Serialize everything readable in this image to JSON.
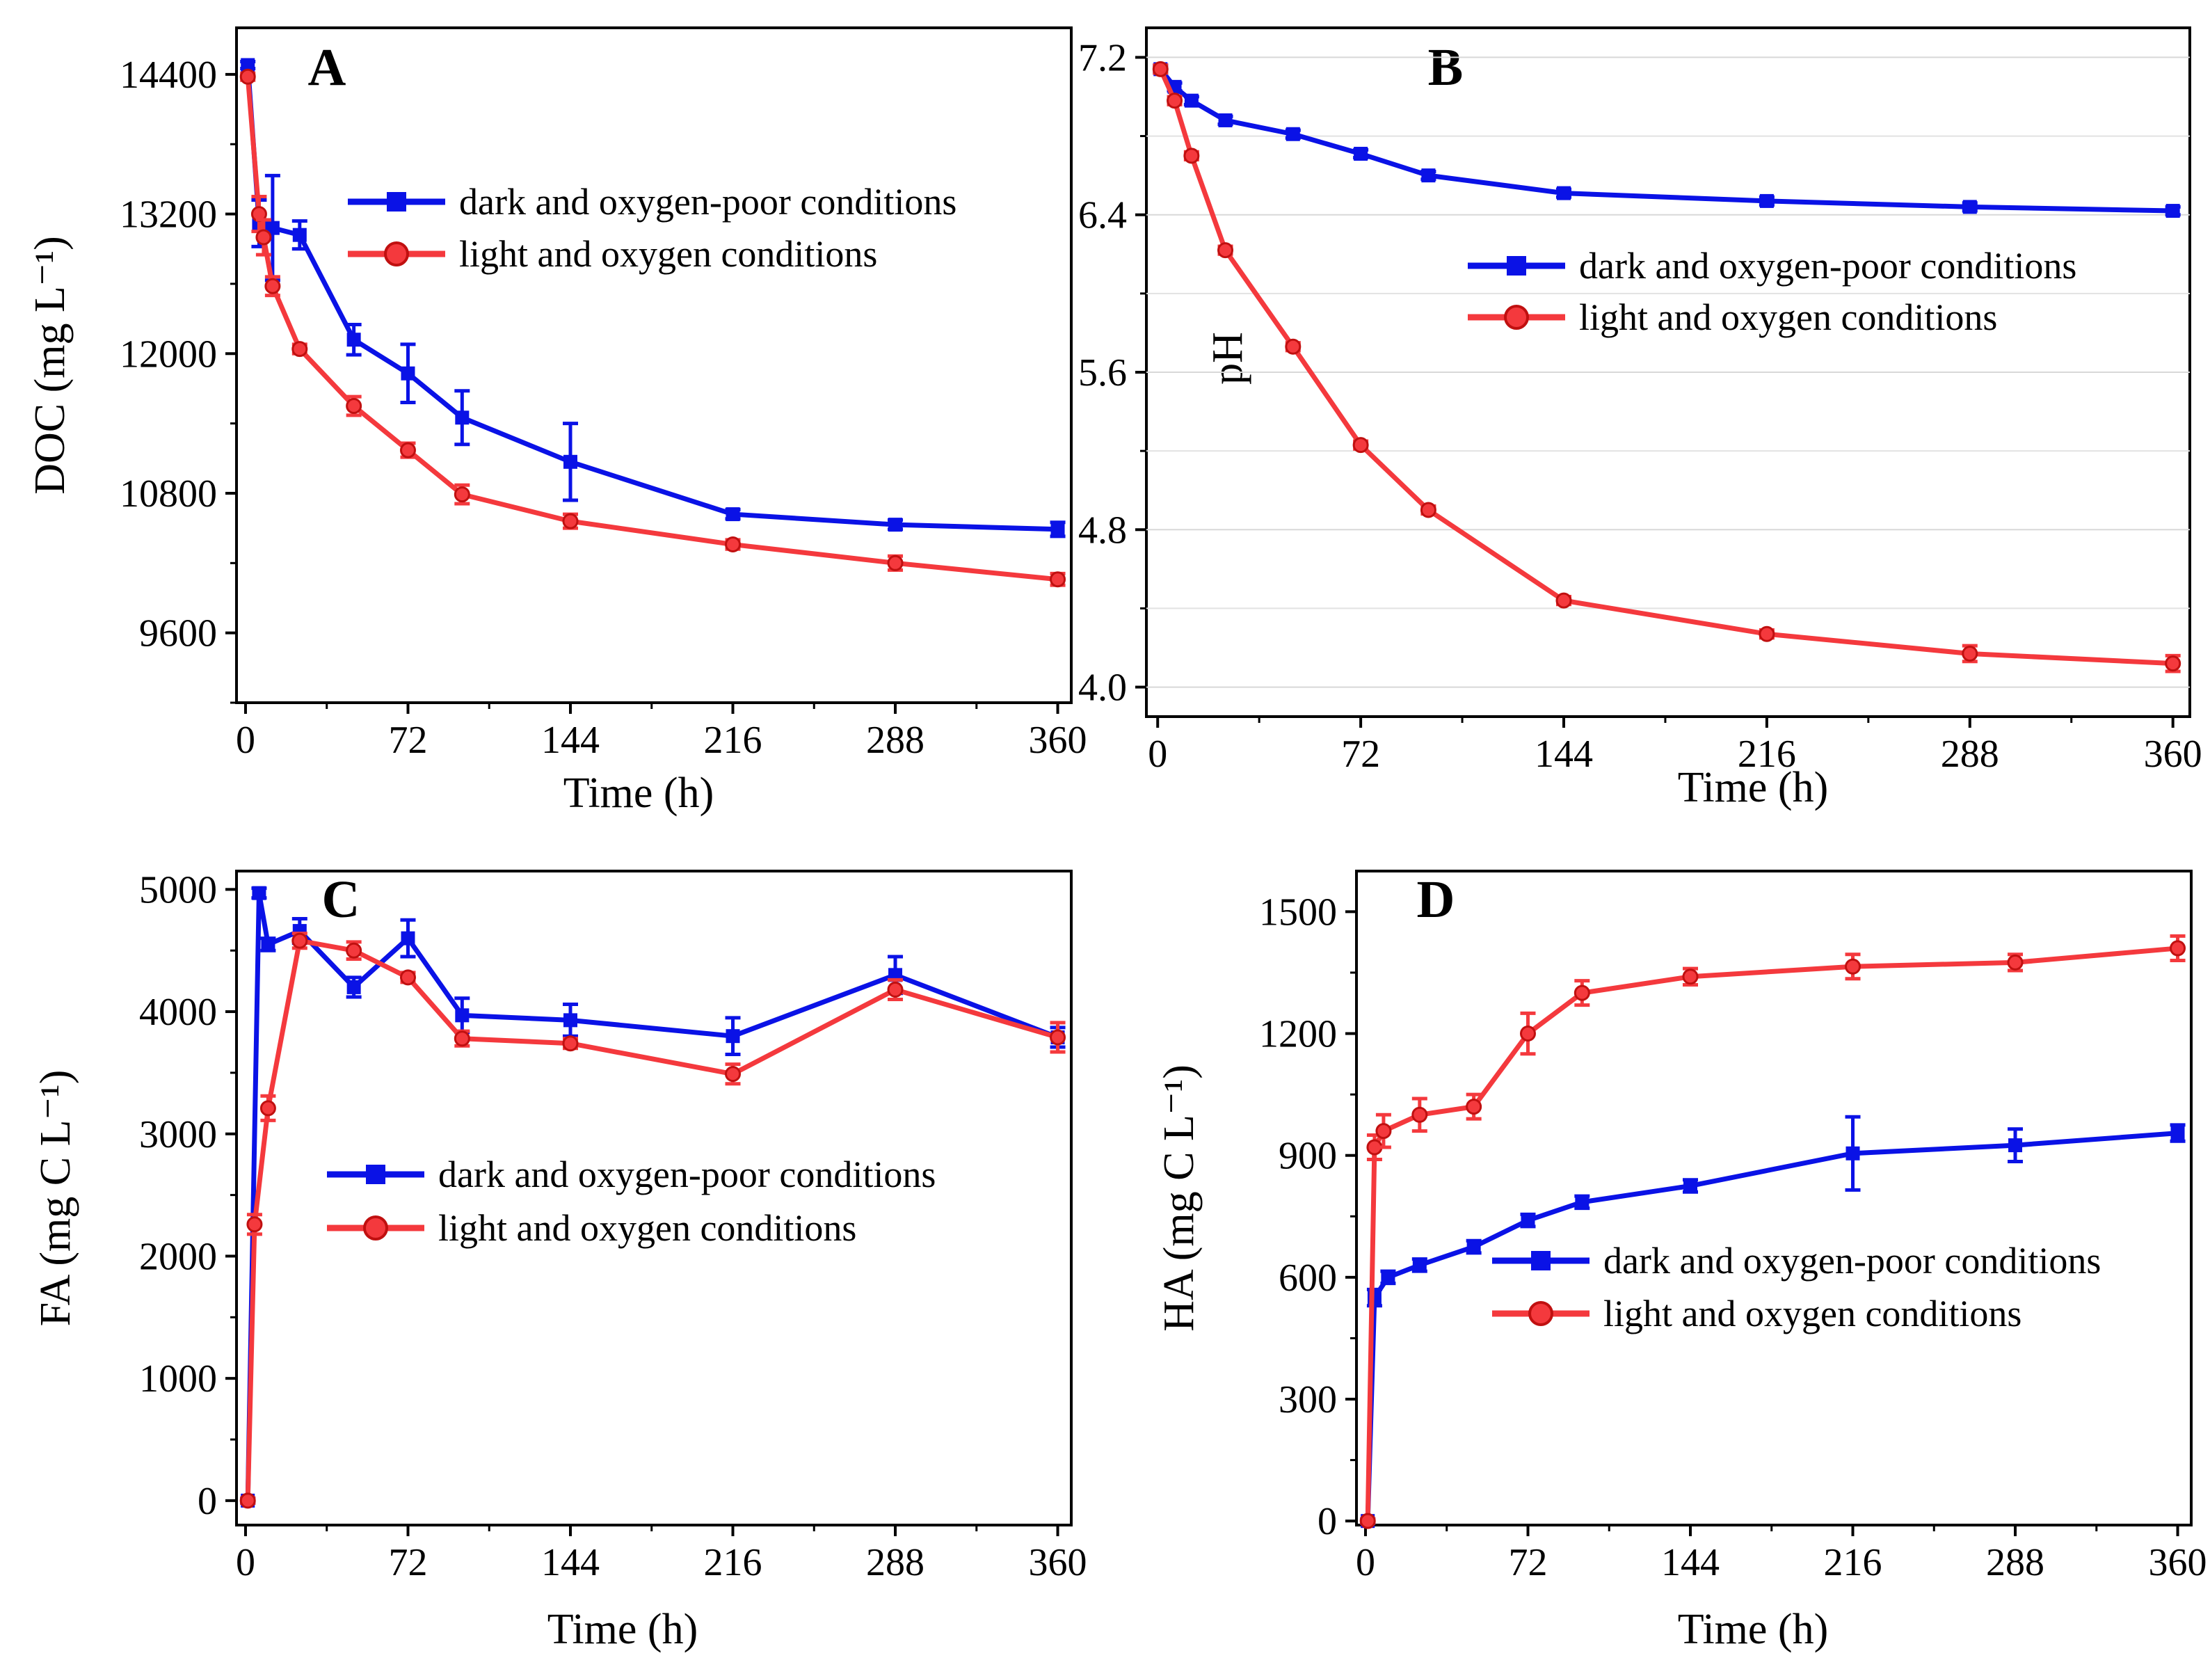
{
  "legend": {
    "dark_label": "dark and oxygen-poor conditions",
    "light_label": "light and oxygen conditions"
  },
  "colors": {
    "dark": "#0a12e6",
    "light": "#f4393d"
  },
  "chart_data": [
    {
      "panel": "A",
      "type": "line",
      "xlabel": "Time (h)",
      "ylabel": "DOC (mg L⁻¹)",
      "xlim": [
        -4,
        366
      ],
      "ylim": [
        9000,
        14800
      ],
      "xticks": [
        0,
        72,
        144,
        216,
        288,
        360
      ],
      "yticks": [
        9600,
        10800,
        12000,
        13200,
        14400
      ],
      "ytick_labels": [
        "9600",
        "10800",
        "12000",
        "13200",
        "14400"
      ],
      "legend_position": "top-right",
      "series": [
        {
          "name": "dark and oxygen-poor conditions",
          "marker": "square",
          "x": [
            1,
            6,
            12,
            24,
            48,
            72,
            96,
            144,
            216,
            288,
            360
          ],
          "y": [
            14480,
            13120,
            13080,
            13020,
            12120,
            11830,
            11450,
            11070,
            10620,
            10530,
            10490
          ],
          "err": [
            30,
            200,
            450,
            120,
            130,
            250,
            230,
            330,
            40,
            40,
            60
          ]
        },
        {
          "name": "light and oxygen conditions",
          "marker": "circle",
          "x": [
            1,
            6,
            8,
            12,
            24,
            48,
            72,
            96,
            144,
            216,
            288,
            360
          ],
          "y": [
            14380,
            13200,
            13000,
            12580,
            12040,
            11550,
            11170,
            10790,
            10560,
            10360,
            10200,
            10060
          ],
          "err": [
            30,
            150,
            150,
            80,
            40,
            80,
            60,
            80,
            60,
            40,
            60,
            50
          ]
        }
      ]
    },
    {
      "panel": "B",
      "type": "line",
      "xlabel": "Time (h)",
      "ylabel": "pH",
      "xlim": [
        -4,
        366
      ],
      "ylim": [
        3.85,
        7.35
      ],
      "xticks": [
        0,
        72,
        144,
        216,
        288,
        360
      ],
      "yticks": [
        4.0,
        4.8,
        5.6,
        6.4,
        7.2
      ],
      "ytick_labels": [
        "4.0",
        "4.8",
        "5.6",
        "6.4",
        "7.2"
      ],
      "minor_yticks": [
        4.4,
        5.2,
        6.0,
        6.8
      ],
      "legend_position": "center-right",
      "series": [
        {
          "name": "dark and oxygen-poor conditions",
          "marker": "square",
          "x": [
            1,
            6,
            12,
            24,
            48,
            72,
            96,
            144,
            216,
            288,
            360
          ],
          "y": [
            7.14,
            7.05,
            6.98,
            6.88,
            6.81,
            6.71,
            6.6,
            6.51,
            6.47,
            6.44,
            6.42
          ],
          "err": [
            0.02,
            0.02,
            0.02,
            0.02,
            0.02,
            0.02,
            0.02,
            0.02,
            0.02,
            0.02,
            0.02
          ]
        },
        {
          "name": "light and oxygen conditions",
          "marker": "circle",
          "x": [
            1,
            6,
            12,
            24,
            48,
            72,
            96,
            144,
            216,
            288,
            360
          ],
          "y": [
            7.14,
            6.98,
            6.7,
            6.22,
            5.73,
            5.23,
            4.9,
            4.44,
            4.27,
            4.17,
            4.12
          ],
          "err": [
            0.02,
            0.02,
            0.02,
            0.02,
            0.02,
            0.02,
            0.02,
            0.02,
            0.02,
            0.04,
            0.04
          ]
        }
      ]
    },
    {
      "panel": "C",
      "type": "line",
      "xlabel": "Time (h)",
      "ylabel": "FA (mg C L⁻¹)",
      "xlim": [
        -4,
        366
      ],
      "ylim": [
        -200,
        5150
      ],
      "xticks": [
        0,
        72,
        144,
        216,
        288,
        360
      ],
      "yticks": [
        0,
        1000,
        2000,
        3000,
        4000,
        5000
      ],
      "ytick_labels": [
        "0",
        "1000",
        "2000",
        "3000",
        "4000",
        "5000"
      ],
      "legend_position": "center-right",
      "series": [
        {
          "name": "dark and oxygen-poor conditions",
          "marker": "square",
          "x": [
            1,
            6,
            10,
            24,
            48,
            72,
            96,
            144,
            216,
            288,
            360
          ],
          "y": [
            0,
            4970,
            4550,
            4660,
            4200,
            4600,
            3970,
            3930,
            3800,
            4300,
            3790
          ],
          "err": [
            20,
            40,
            50,
            100,
            80,
            150,
            140,
            130,
            150,
            150,
            80
          ]
        },
        {
          "name": "light and oxygen conditions",
          "marker": "circle",
          "x": [
            1,
            4,
            10,
            24,
            48,
            72,
            96,
            144,
            216,
            288,
            360
          ],
          "y": [
            0,
            2260,
            3210,
            4580,
            4500,
            4280,
            3780,
            3740,
            3490,
            4180,
            3790
          ],
          "err": [
            20,
            80,
            100,
            60,
            70,
            40,
            60,
            40,
            80,
            80,
            120
          ]
        }
      ]
    },
    {
      "panel": "D",
      "type": "line",
      "xlabel": "Time (h)",
      "ylabel": "HA (mg C L⁻¹)",
      "xlim": [
        -4,
        366
      ],
      "ylim": [
        -10,
        1600
      ],
      "xticks": [
        0,
        72,
        144,
        216,
        288,
        360
      ],
      "yticks": [
        0,
        300,
        600,
        900,
        1200,
        1500
      ],
      "ytick_labels": [
        "0",
        "300",
        "600",
        "900",
        "1200",
        "1500"
      ],
      "legend_position": "lower-right",
      "series": [
        {
          "name": "dark and oxygen-poor conditions",
          "marker": "square",
          "x": [
            1,
            4,
            10,
            24,
            48,
            72,
            96,
            144,
            216,
            288,
            360
          ],
          "y": [
            0,
            550,
            600,
            630,
            675,
            740,
            785,
            825,
            905,
            925,
            955
          ],
          "err": [
            5,
            20,
            15,
            15,
            15,
            15,
            15,
            15,
            90,
            40,
            20
          ]
        },
        {
          "name": "light and oxygen conditions",
          "marker": "circle",
          "x": [
            1,
            4,
            8,
            24,
            48,
            72,
            96,
            144,
            216,
            288,
            360
          ],
          "y": [
            0,
            920,
            960,
            1000,
            1020,
            1200,
            1300,
            1340,
            1365,
            1375,
            1410
          ],
          "err": [
            5,
            30,
            40,
            40,
            30,
            50,
            30,
            20,
            30,
            20,
            30
          ]
        }
      ]
    }
  ]
}
